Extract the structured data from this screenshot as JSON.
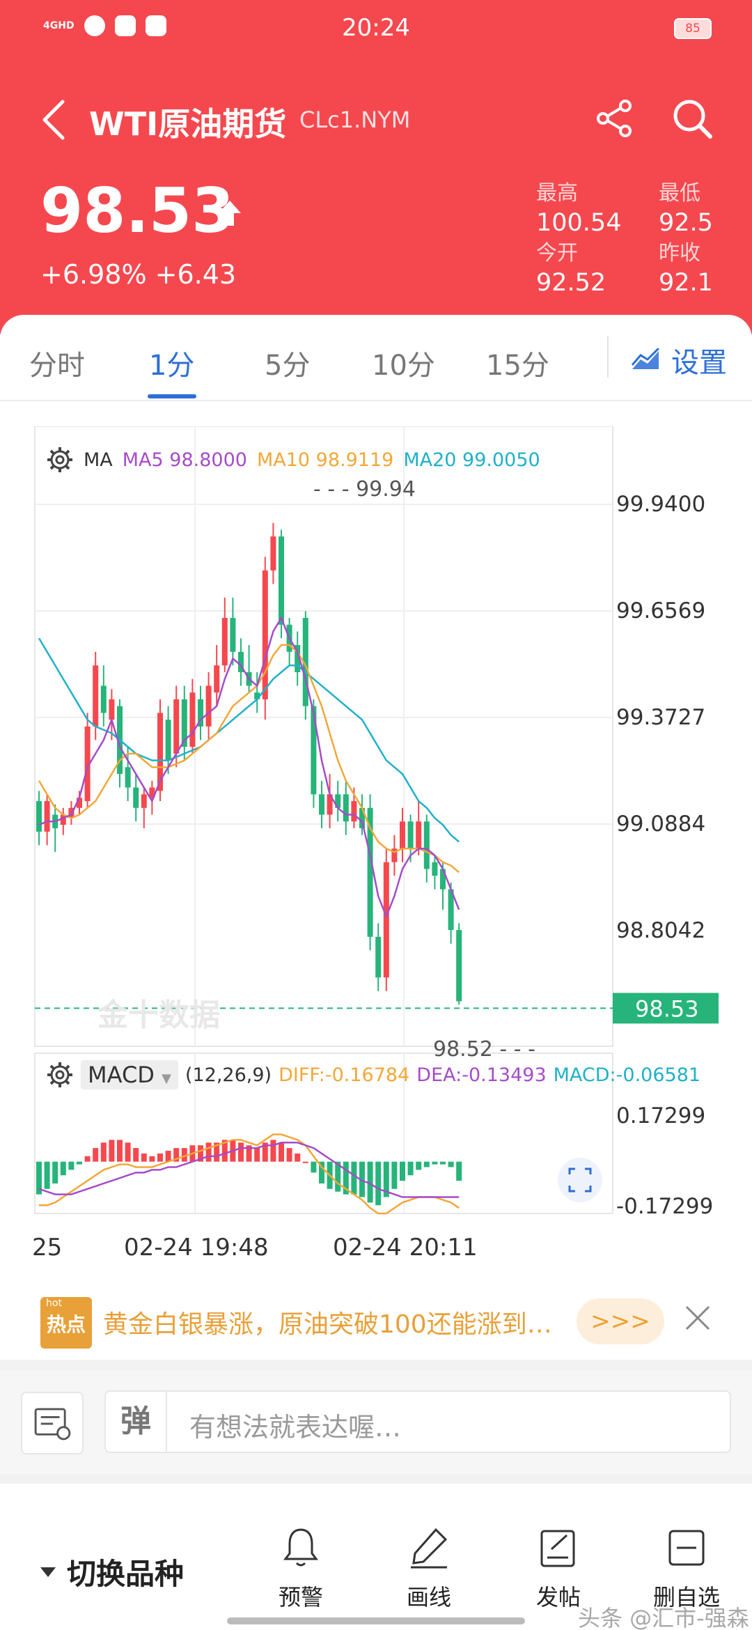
{
  "status_bar": {
    "network": "4GHD",
    "time": "20:24",
    "battery": "85"
  },
  "header": {
    "title": "WTI原油期货",
    "symbol": "CLc1.NYM",
    "price": "98.53",
    "change": "+6.98% +6.43",
    "stats": [
      {
        "label": "最高",
        "value": "100.54"
      },
      {
        "label": "最低",
        "value": "92.5"
      },
      {
        "label": "今开",
        "value": "92.52"
      },
      {
        "label": "昨收",
        "value": "92.1"
      }
    ],
    "colors": {
      "header_bg": "#f5484e",
      "up": "#f5484e",
      "down": "#26b47a"
    }
  },
  "tabs": {
    "items": [
      "分时",
      "1分",
      "5分",
      "10分",
      "15分"
    ],
    "active_index": 1,
    "settings_label": "设置"
  },
  "chart": {
    "ma_legend": {
      "label": "MA",
      "ma5": "MA5 98.8000",
      "ma10": "MA10 98.9119",
      "ma20": "MA20 99.0050",
      "colors": {
        "ma5": "#a64bc9",
        "ma10": "#f2a737",
        "ma20": "#1fb0c9"
      }
    },
    "y_ticks": [
      "99.9400",
      "99.6569",
      "99.3727",
      "99.0884",
      "98.8042"
    ],
    "high_label": "99.94",
    "low_label": "98.52",
    "current_price_tag": "98.53",
    "watermark": "金十数据",
    "macd_legend": {
      "name": "MACD",
      "params": "(12,26,9)",
      "diff": "DIFF:-0.16784",
      "dea": "DEA:-0.13493",
      "macd": "MACD:-0.06581"
    },
    "macd_ticks": [
      "0.17299",
      "-0.17299"
    ],
    "x_ticks": [
      "25",
      "02-24 19:48",
      "02-24 20:11"
    ]
  },
  "chart_data": {
    "type": "candlestick",
    "ylim": [
      98.5,
      100.04
    ],
    "candles": [
      {
        "o": 99.12,
        "c": 99.03,
        "h": 99.15,
        "l": 98.99
      },
      {
        "o": 99.03,
        "c": 99.12,
        "h": 99.14,
        "l": 98.99
      },
      {
        "o": 99.08,
        "c": 99.04,
        "h": 99.11,
        "l": 98.97
      },
      {
        "o": 99.05,
        "c": 99.08,
        "h": 99.1,
        "l": 99.02
      },
      {
        "o": 99.07,
        "c": 99.1,
        "h": 99.12,
        "l": 99.05
      },
      {
        "o": 99.1,
        "c": 99.13,
        "h": 99.15,
        "l": 99.08
      },
      {
        "o": 99.12,
        "c": 99.34,
        "h": 99.38,
        "l": 99.1
      },
      {
        "o": 99.34,
        "c": 99.52,
        "h": 99.56,
        "l": 99.3
      },
      {
        "o": 99.46,
        "c": 99.38,
        "h": 99.52,
        "l": 99.34
      },
      {
        "o": 99.36,
        "c": 99.42,
        "h": 99.45,
        "l": 99.3
      },
      {
        "o": 99.4,
        "c": 99.2,
        "h": 99.42,
        "l": 99.16
      },
      {
        "o": 99.22,
        "c": 99.16,
        "h": 99.28,
        "l": 99.12
      },
      {
        "o": 99.16,
        "c": 99.1,
        "h": 99.2,
        "l": 99.06
      },
      {
        "o": 99.1,
        "c": 99.14,
        "h": 99.16,
        "l": 99.04
      },
      {
        "o": 99.13,
        "c": 99.16,
        "h": 99.18,
        "l": 99.08
      },
      {
        "o": 99.15,
        "c": 99.38,
        "h": 99.42,
        "l": 99.12
      },
      {
        "o": 99.36,
        "c": 99.24,
        "h": 99.4,
        "l": 99.2
      },
      {
        "o": 99.26,
        "c": 99.42,
        "h": 99.46,
        "l": 99.22
      },
      {
        "o": 99.42,
        "c": 99.28,
        "h": 99.46,
        "l": 99.24
      },
      {
        "o": 99.28,
        "c": 99.44,
        "h": 99.48,
        "l": 99.26
      },
      {
        "o": 99.42,
        "c": 99.34,
        "h": 99.46,
        "l": 99.3
      },
      {
        "o": 99.34,
        "c": 99.46,
        "h": 99.5,
        "l": 99.3
      },
      {
        "o": 99.44,
        "c": 99.52,
        "h": 99.58,
        "l": 99.4
      },
      {
        "o": 99.52,
        "c": 99.66,
        "h": 99.72,
        "l": 99.5
      },
      {
        "o": 99.66,
        "c": 99.56,
        "h": 99.72,
        "l": 99.52
      },
      {
        "o": 99.56,
        "c": 99.5,
        "h": 99.6,
        "l": 99.46
      },
      {
        "o": 99.5,
        "c": 99.46,
        "h": 99.58,
        "l": 99.44
      },
      {
        "o": 99.44,
        "c": 99.42,
        "h": 99.5,
        "l": 99.38
      },
      {
        "o": 99.42,
        "c": 99.8,
        "h": 99.84,
        "l": 99.36
      },
      {
        "o": 99.8,
        "c": 99.9,
        "h": 99.94,
        "l": 99.76
      },
      {
        "o": 99.9,
        "c": 99.64,
        "h": 99.92,
        "l": 99.6
      },
      {
        "o": 99.64,
        "c": 99.56,
        "h": 99.66,
        "l": 99.52
      },
      {
        "o": 99.58,
        "c": 99.5,
        "h": 99.62,
        "l": 99.46
      },
      {
        "o": 99.66,
        "c": 99.4,
        "h": 99.68,
        "l": 99.36
      },
      {
        "o": 99.4,
        "c": 99.14,
        "h": 99.42,
        "l": 99.1
      },
      {
        "o": 99.14,
        "c": 99.08,
        "h": 99.18,
        "l": 99.04
      },
      {
        "o": 99.08,
        "c": 99.14,
        "h": 99.2,
        "l": 99.04
      },
      {
        "o": 99.14,
        "c": 99.1,
        "h": 99.18,
        "l": 99.06
      },
      {
        "o": 99.14,
        "c": 99.06,
        "h": 99.18,
        "l": 99.02
      },
      {
        "o": 99.06,
        "c": 99.12,
        "h": 99.16,
        "l": 99.04
      },
      {
        "o": 99.1,
        "c": 99.04,
        "h": 99.14,
        "l": 99.02
      },
      {
        "o": 99.1,
        "c": 98.72,
        "h": 99.14,
        "l": 98.68
      },
      {
        "o": 98.72,
        "c": 98.6,
        "h": 98.76,
        "l": 98.56
      },
      {
        "o": 98.6,
        "c": 98.94,
        "h": 98.98,
        "l": 98.56
      },
      {
        "o": 98.94,
        "c": 98.98,
        "h": 99.02,
        "l": 98.9
      },
      {
        "o": 98.98,
        "c": 99.06,
        "h": 99.1,
        "l": 98.94
      },
      {
        "o": 99.06,
        "c": 98.98,
        "h": 99.08,
        "l": 98.94
      },
      {
        "o": 98.98,
        "c": 99.06,
        "h": 99.12,
        "l": 98.96
      },
      {
        "o": 99.06,
        "c": 98.92,
        "h": 99.08,
        "l": 98.88
      },
      {
        "o": 98.94,
        "c": 98.9,
        "h": 98.96,
        "l": 98.86
      },
      {
        "o": 98.92,
        "c": 98.86,
        "h": 98.94,
        "l": 98.8
      },
      {
        "o": 98.86,
        "c": 98.74,
        "h": 98.88,
        "l": 98.7
      },
      {
        "o": 98.74,
        "c": 98.53,
        "h": 98.76,
        "l": 98.52
      }
    ],
    "ma5": [
      99.05,
      99.06,
      99.06,
      99.07,
      99.08,
      99.13,
      99.22,
      99.26,
      99.3,
      99.36,
      99.28,
      99.24,
      99.2,
      99.16,
      99.12,
      99.18,
      99.22,
      99.26,
      99.3,
      99.32,
      99.36,
      99.38,
      99.4,
      99.48,
      99.54,
      99.52,
      99.48,
      99.46,
      99.54,
      99.62,
      99.66,
      99.6,
      99.56,
      99.48,
      99.38,
      99.24,
      99.14,
      99.1,
      99.08,
      99.08,
      99.06,
      98.96,
      98.84,
      98.78,
      98.84,
      98.92,
      98.96,
      98.98,
      98.98,
      98.96,
      98.92,
      98.86,
      98.8
    ],
    "ma10": [
      99.18,
      99.14,
      99.1,
      99.08,
      99.07,
      99.08,
      99.1,
      99.12,
      99.16,
      99.2,
      99.24,
      99.26,
      99.26,
      99.24,
      99.22,
      99.22,
      99.22,
      99.23,
      99.24,
      99.26,
      99.28,
      99.3,
      99.32,
      99.36,
      99.4,
      99.42,
      99.44,
      99.46,
      99.5,
      99.55,
      99.58,
      99.58,
      99.56,
      99.52,
      99.46,
      99.4,
      99.32,
      99.24,
      99.18,
      99.14,
      99.1,
      99.04,
      99.0,
      98.98,
      98.97,
      98.98,
      98.98,
      98.98,
      98.97,
      98.96,
      98.94,
      98.93,
      98.91
    ],
    "ma20": [
      99.6,
      99.56,
      99.52,
      99.48,
      99.44,
      99.4,
      99.36,
      99.34,
      99.33,
      99.32,
      99.3,
      99.28,
      99.26,
      99.25,
      99.24,
      99.24,
      99.24,
      99.25,
      99.26,
      99.27,
      99.28,
      99.3,
      99.32,
      99.34,
      99.36,
      99.38,
      99.4,
      99.42,
      99.45,
      99.48,
      99.5,
      99.52,
      99.52,
      99.5,
      99.48,
      99.46,
      99.44,
      99.42,
      99.4,
      99.38,
      99.36,
      99.32,
      99.28,
      99.24,
      99.22,
      99.2,
      99.16,
      99.12,
      99.1,
      99.07,
      99.05,
      99.02,
      99.0
    ],
    "macd_hist": [
      -0.12,
      -0.1,
      -0.08,
      -0.05,
      -0.03,
      -0.01,
      0.02,
      0.05,
      0.07,
      0.08,
      0.08,
      0.07,
      0.05,
      0.03,
      0.02,
      0.03,
      0.04,
      0.05,
      0.05,
      0.06,
      0.06,
      0.07,
      0.07,
      0.08,
      0.08,
      0.07,
      0.06,
      0.05,
      0.07,
      0.08,
      0.07,
      0.05,
      0.03,
      0.0,
      -0.04,
      -0.08,
      -0.1,
      -0.11,
      -0.12,
      -0.12,
      -0.13,
      -0.15,
      -0.16,
      -0.13,
      -0.1,
      -0.07,
      -0.05,
      -0.03,
      -0.02,
      -0.01,
      -0.01,
      -0.02,
      -0.07
    ],
    "macd_diff": [
      -0.16,
      -0.16,
      -0.15,
      -0.13,
      -0.11,
      -0.09,
      -0.07,
      -0.05,
      -0.03,
      -0.02,
      -0.01,
      -0.01,
      -0.02,
      -0.02,
      -0.02,
      -0.01,
      0.0,
      0.01,
      0.02,
      0.03,
      0.04,
      0.05,
      0.06,
      0.07,
      0.08,
      0.08,
      0.07,
      0.06,
      0.08,
      0.1,
      0.1,
      0.09,
      0.08,
      0.06,
      0.02,
      -0.02,
      -0.05,
      -0.08,
      -0.1,
      -0.12,
      -0.14,
      -0.17,
      -0.19,
      -0.19,
      -0.17,
      -0.15,
      -0.14,
      -0.13,
      -0.13,
      -0.13,
      -0.14,
      -0.15,
      -0.17
    ],
    "macd_dea": [
      -0.1,
      -0.11,
      -0.12,
      -0.12,
      -0.12,
      -0.11,
      -0.1,
      -0.09,
      -0.08,
      -0.07,
      -0.06,
      -0.05,
      -0.04,
      -0.04,
      -0.03,
      -0.03,
      -0.02,
      -0.02,
      -0.01,
      0.0,
      0.01,
      0.02,
      0.02,
      0.03,
      0.04,
      0.05,
      0.05,
      0.05,
      0.06,
      0.06,
      0.07,
      0.07,
      0.07,
      0.06,
      0.05,
      0.03,
      0.01,
      -0.01,
      -0.03,
      -0.05,
      -0.07,
      -0.08,
      -0.1,
      -0.11,
      -0.12,
      -0.13,
      -0.13,
      -0.13,
      -0.13,
      -0.13,
      -0.13,
      -0.13,
      -0.13
    ],
    "macd_ylim": [
      -0.19,
      0.17299
    ]
  },
  "news": {
    "badge": "热点",
    "badge_tag": "hot",
    "text": "黄金白银暴涨，原油突破100还能涨到哪…",
    "more": ">>>"
  },
  "comment": {
    "placeholder": "有想法就表达喔…",
    "icon_text": "弹"
  },
  "toolbar": {
    "switch_label": "切换品种",
    "items": [
      "预警",
      "画线",
      "发帖",
      "删自选"
    ],
    "watermark": "头条 @汇市-强森"
  }
}
